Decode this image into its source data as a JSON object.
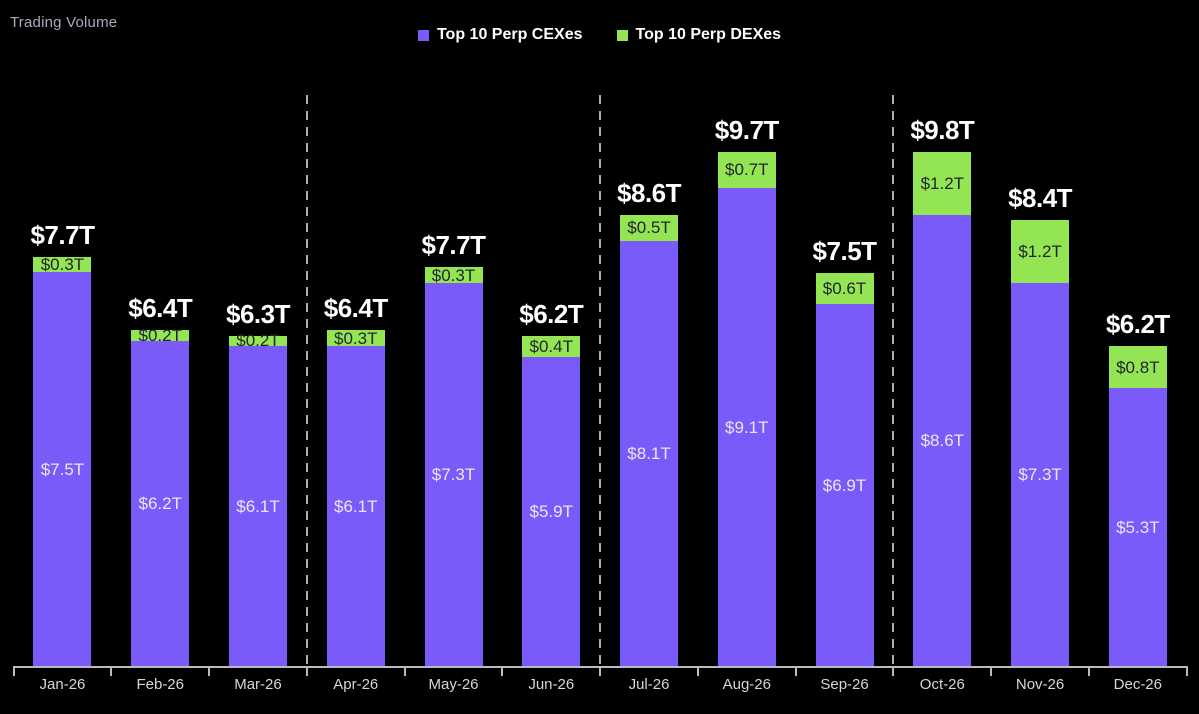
{
  "title": "Trading Volume",
  "chart_data": {
    "type": "bar",
    "subtype": "stacked",
    "title": "Trading Volume",
    "categories": [
      "Jan-26",
      "Feb-26",
      "Mar-26",
      "Apr-26",
      "May-26",
      "Jun-26",
      "Jul-26",
      "Aug-26",
      "Sep-26",
      "Oct-26",
      "Nov-26",
      "Dec-26"
    ],
    "series": [
      {
        "name": "Top 10 Perp CEXes",
        "color": "#7a5af8",
        "values": [
          7.5,
          6.2,
          6.1,
          6.1,
          7.3,
          5.9,
          8.1,
          9.1,
          6.9,
          8.6,
          7.3,
          5.3
        ],
        "labels": [
          "$7.5T",
          "$6.2T",
          "$6.1T",
          "$6.1T",
          "$7.3T",
          "$5.9T",
          "$8.1T",
          "$9.1T",
          "$6.9T",
          "$8.6T",
          "$7.3T",
          "$5.3T"
        ]
      },
      {
        "name": "Top 10 Perp DEXes",
        "color": "#93e553",
        "values": [
          0.3,
          0.2,
          0.2,
          0.3,
          0.3,
          0.4,
          0.5,
          0.7,
          0.6,
          1.2,
          1.2,
          0.8
        ],
        "labels": [
          "$0.3T",
          "$0.2T",
          "$0.2T",
          "$0.3T",
          "$0.3T",
          "$0.4T",
          "$0.5T",
          "$0.7T",
          "$0.6T",
          "$1.2T",
          "$1.2T",
          "$0.8T"
        ]
      }
    ],
    "totals": [
      "$7.7T",
      "$6.4T",
      "$6.3T",
      "$6.4T",
      "$7.7T",
      "$6.2T",
      "$8.6T",
      "$9.7T",
      "$7.5T",
      "$9.8T",
      "$8.4T",
      "$6.2T"
    ],
    "quarter_dividers_after_index": [
      3,
      6,
      9
    ],
    "value_unit": "USD trillions",
    "grid": false,
    "legend_position": "top-center",
    "axis_color": "#babac2",
    "background_color": "#000000"
  }
}
